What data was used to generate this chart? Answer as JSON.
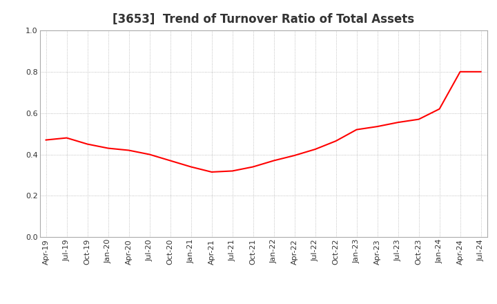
{
  "title": "[3653]  Trend of Turnover Ratio of Total Assets",
  "x_labels": [
    "Apr-19",
    "Jul-19",
    "Oct-19",
    "Jan-20",
    "Apr-20",
    "Jul-20",
    "Oct-20",
    "Jan-21",
    "Apr-21",
    "Jul-21",
    "Oct-21",
    "Jan-22",
    "Apr-22",
    "Jul-22",
    "Oct-22",
    "Jan-23",
    "Apr-23",
    "Jul-23",
    "Oct-23",
    "Jan-24",
    "Apr-24",
    "Jul-24"
  ],
  "values": [
    0.47,
    0.48,
    0.45,
    0.43,
    0.42,
    0.4,
    0.37,
    0.34,
    0.315,
    0.32,
    0.34,
    0.37,
    0.395,
    0.425,
    0.465,
    0.52,
    0.535,
    0.555,
    0.57,
    0.62,
    0.8,
    0.8
  ],
  "line_color": "#FF0000",
  "line_width": 1.5,
  "ylim": [
    0.0,
    1.0
  ],
  "yticks": [
    0.0,
    0.2,
    0.4,
    0.6,
    0.8,
    1.0
  ],
  "bg_color": "#ffffff",
  "plot_bg_color": "#ffffff",
  "grid_color": "#999999",
  "title_fontsize": 12,
  "tick_fontsize": 8,
  "title_color": "#333333",
  "spine_color": "#aaaaaa"
}
